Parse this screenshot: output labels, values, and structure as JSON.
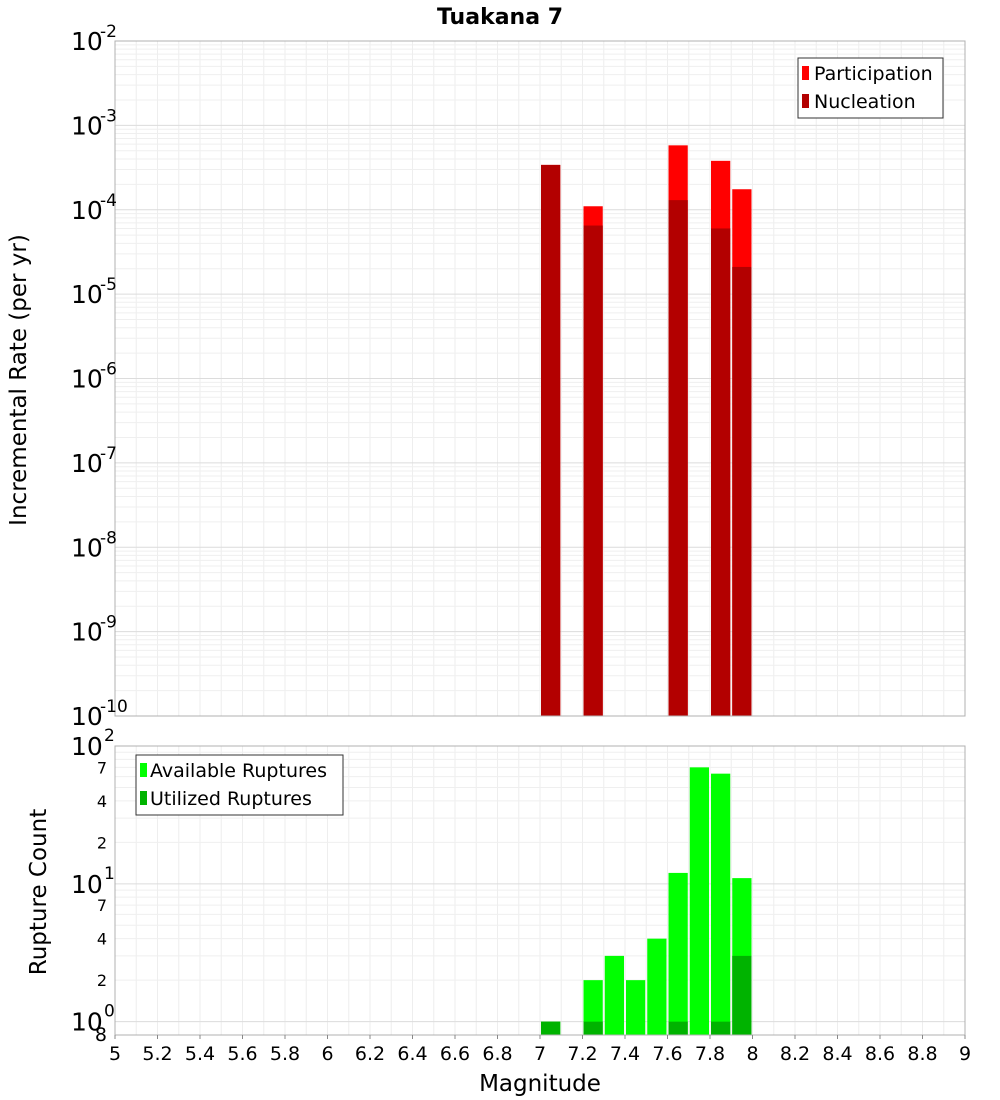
{
  "chart_data": [
    {
      "type": "bar",
      "title": "Tuakana 7",
      "xlabel": "",
      "ylabel": "Incremental Rate (per yr)",
      "yscale": "log",
      "xlim": [
        5,
        9
      ],
      "ylim": [
        1e-10,
        0.01
      ],
      "y_ticks": [
        {
          "base": "10",
          "exp": "-2"
        },
        {
          "base": "10",
          "exp": "-3"
        },
        {
          "base": "10",
          "exp": "-4"
        },
        {
          "base": "10",
          "exp": "-5"
        },
        {
          "base": "10",
          "exp": "-6"
        },
        {
          "base": "10",
          "exp": "-7"
        },
        {
          "base": "10",
          "exp": "-8"
        },
        {
          "base": "10",
          "exp": "-9"
        },
        {
          "base": "10",
          "exp": "-10"
        }
      ],
      "grid": true,
      "legend_position": "top-right",
      "series": [
        {
          "name": "Participation",
          "color": "#ff0000",
          "x": [
            7.05,
            7.25,
            7.65,
            7.85,
            7.95
          ],
          "values": [
            0.00034,
            0.00011,
            0.00058,
            0.00038,
            0.000175
          ]
        },
        {
          "name": "Nucleation",
          "color": "#b30000",
          "x": [
            7.05,
            7.25,
            7.65,
            7.85,
            7.95
          ],
          "values": [
            0.00034,
            6.5e-05,
            0.00013,
            6e-05,
            2.1e-05
          ]
        }
      ]
    },
    {
      "type": "bar",
      "title": "",
      "xlabel": "Magnitude",
      "ylabel": "Rupture Count",
      "yscale": "log",
      "xlim": [
        5,
        9
      ],
      "ylim": [
        0.8,
        100
      ],
      "x_ticks": [
        "5",
        "5.2",
        "5.4",
        "5.6",
        "5.8",
        "6",
        "6.2",
        "6.4",
        "6.6",
        "6.8",
        "7",
        "7.2",
        "7.4",
        "7.6",
        "7.8",
        "8",
        "8.2",
        "8.4",
        "8.6",
        "8.8",
        "9"
      ],
      "y_major_ticks": [
        {
          "value": 100,
          "base": "10",
          "exp": "2"
        },
        {
          "value": 10,
          "base": "10",
          "exp": "1"
        },
        {
          "value": 1,
          "base": "10",
          "exp": "0"
        }
      ],
      "y_minor_labels": [
        {
          "value": 70,
          "label": "7"
        },
        {
          "value": 40,
          "label": "4"
        },
        {
          "value": 20,
          "label": "2"
        },
        {
          "value": 7,
          "label": "7"
        },
        {
          "value": 4,
          "label": "4"
        },
        {
          "value": 2,
          "label": "2"
        },
        {
          "value": 0.8,
          "label": "8"
        }
      ],
      "grid": true,
      "legend_position": "top-left",
      "series": [
        {
          "name": "Available Ruptures",
          "color": "#00ff00",
          "x": [
            7.05,
            7.25,
            7.35,
            7.45,
            7.55,
            7.65,
            7.75,
            7.85,
            7.95
          ],
          "values": [
            1,
            2,
            3,
            2,
            4,
            12,
            70,
            63,
            11
          ]
        },
        {
          "name": "Utilized Ruptures",
          "color": "#00b300",
          "x": [
            7.05,
            7.25,
            7.35,
            7.45,
            7.55,
            7.65,
            7.75,
            7.85,
            7.95
          ],
          "values": [
            1,
            1,
            0,
            0,
            0,
            1,
            0,
            1,
            3
          ]
        }
      ]
    }
  ]
}
